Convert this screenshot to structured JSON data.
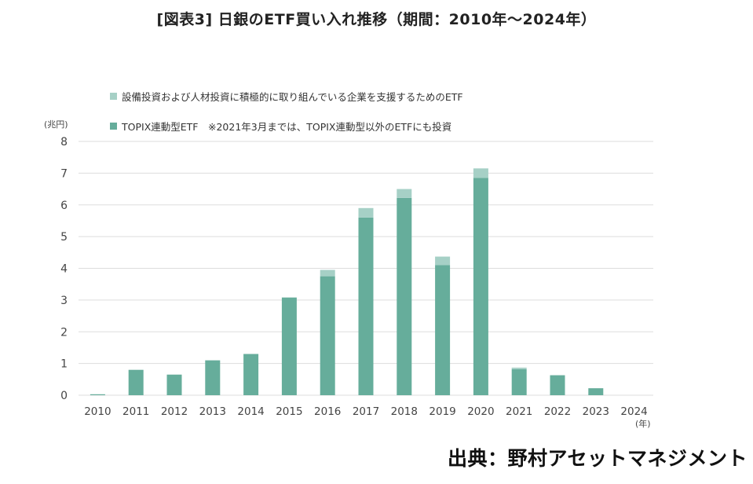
{
  "header": {
    "title": "[図表3] 日銀のETF買い入れ推移（期間：2010年～2024年）"
  },
  "source": "出典：野村アセットマネジメント",
  "colors": {
    "series_top": "#a6d0c6",
    "series_base": "#66ad9b",
    "grid": "#dddddd",
    "axis_text": "#444444"
  },
  "chart_data": {
    "type": "bar",
    "stacked": true,
    "unit_label": "(兆円)",
    "x_unit_label": "(年)",
    "categories": [
      "2010",
      "2011",
      "2012",
      "2013",
      "2014",
      "2015",
      "2016",
      "2017",
      "2018",
      "2019",
      "2020",
      "2021",
      "2022",
      "2023",
      "2024"
    ],
    "series": [
      {
        "name": "TOPIX連動型ETF　※2021年3月までは、TOPIX連動型以外のETFにも投資",
        "values": [
          0.03,
          0.8,
          0.65,
          1.1,
          1.3,
          3.08,
          3.75,
          5.6,
          6.22,
          4.1,
          6.85,
          0.82,
          0.63,
          0.22,
          0
        ]
      },
      {
        "name": "設備投資および人材投資に積極的に取り組んでいる企業を支援するためのETF",
        "values": [
          0,
          0,
          0,
          0,
          0,
          0,
          0.2,
          0.3,
          0.28,
          0.27,
          0.3,
          0.05,
          0,
          0,
          0
        ]
      }
    ],
    "y_ticks": [
      "0",
      "1",
      "2",
      "3",
      "4",
      "5",
      "6",
      "7",
      "8"
    ],
    "ylim": [
      0,
      8
    ],
    "grid": true,
    "legend_position": "top-left"
  }
}
